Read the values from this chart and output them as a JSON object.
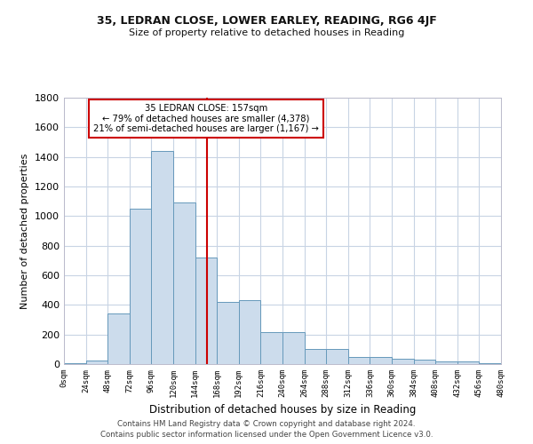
{
  "title1": "35, LEDRAN CLOSE, LOWER EARLEY, READING, RG6 4JF",
  "title2": "Size of property relative to detached houses in Reading",
  "xlabel": "Distribution of detached houses by size in Reading",
  "ylabel": "Number of detached properties",
  "bar_edges": [
    0,
    24,
    48,
    72,
    96,
    120,
    144,
    168,
    192,
    216,
    240,
    264,
    288,
    312,
    336,
    360,
    384,
    408,
    432,
    456,
    480
  ],
  "bar_heights": [
    5,
    25,
    340,
    1050,
    1440,
    1090,
    720,
    420,
    430,
    215,
    215,
    100,
    100,
    50,
    50,
    35,
    28,
    20,
    20,
    5
  ],
  "bar_color": "#ccdcec",
  "bar_edge_color": "#6699bb",
  "vline_x": 157,
  "vline_color": "#cc0000",
  "annotation_text": "35 LEDRAN CLOSE: 157sqm\n← 79% of detached houses are smaller (4,378)\n21% of semi-detached houses are larger (1,167) →",
  "annotation_box_color": "#cc0000",
  "ylim": [
    0,
    1800
  ],
  "yticks": [
    0,
    200,
    400,
    600,
    800,
    1000,
    1200,
    1400,
    1600,
    1800
  ],
  "xtick_labels": [
    "0sqm",
    "24sqm",
    "48sqm",
    "72sqm",
    "96sqm",
    "120sqm",
    "144sqm",
    "168sqm",
    "192sqm",
    "216sqm",
    "240sqm",
    "264sqm",
    "288sqm",
    "312sqm",
    "336sqm",
    "360sqm",
    "384sqm",
    "408sqm",
    "432sqm",
    "456sqm",
    "480sqm"
  ],
  "footer1": "Contains HM Land Registry data © Crown copyright and database right 2024.",
  "footer2": "Contains public sector information licensed under the Open Government Licence v3.0.",
  "background_color": "#ffffff",
  "grid_color": "#c8d4e4",
  "figwidth": 6.0,
  "figheight": 5.0,
  "dpi": 100
}
